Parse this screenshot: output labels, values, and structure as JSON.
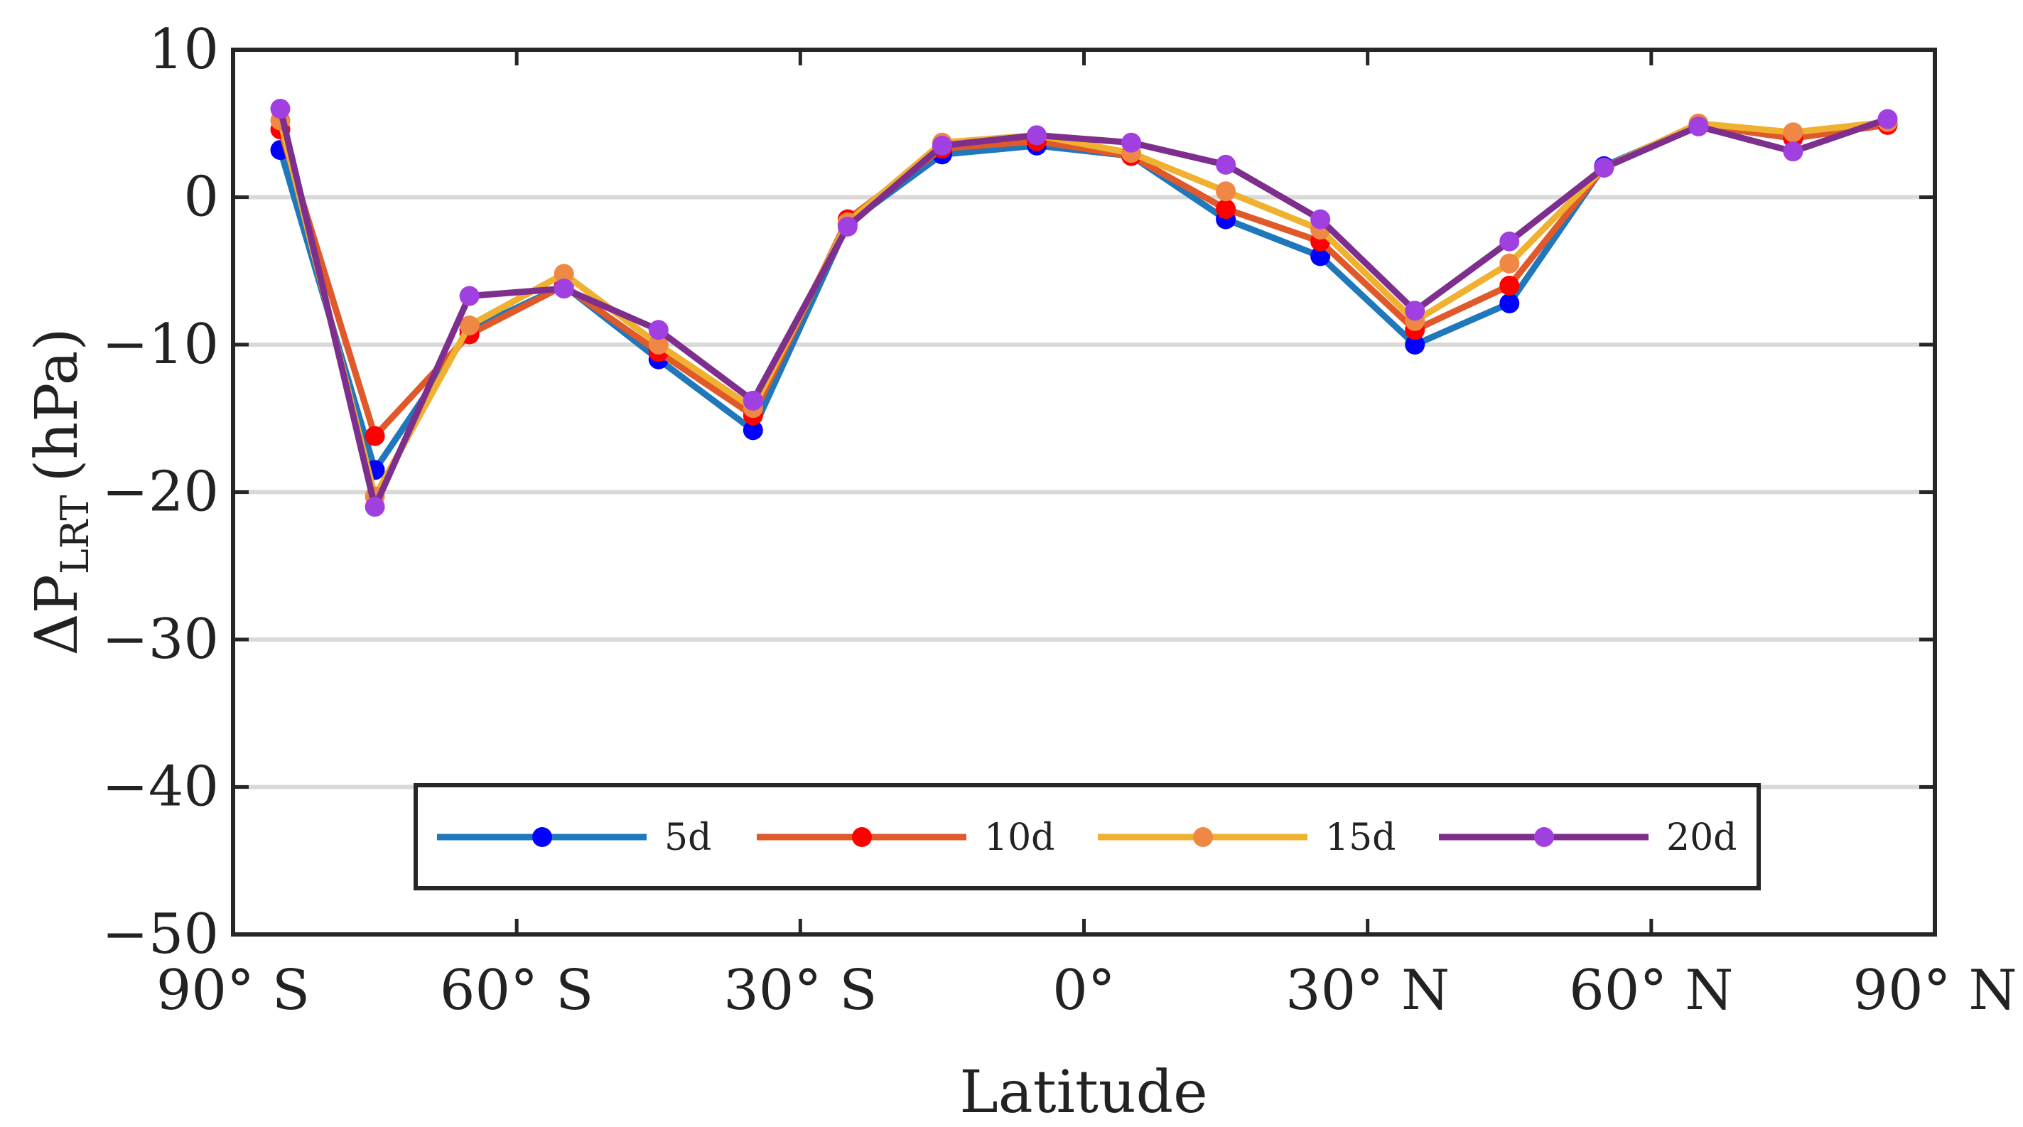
{
  "chart_data": {
    "type": "line",
    "title": "",
    "xlabel": "Latitude",
    "ylabel": "ΔP",
    "ylabel_subscript": "LRT",
    "ylabel_unit": "(hPa)",
    "xlim": [
      -90,
      90
    ],
    "ylim": [
      -50,
      10
    ],
    "x_ticks": [
      {
        "value": -90,
        "label": "90° S"
      },
      {
        "value": -60,
        "label": "60° S"
      },
      {
        "value": -30,
        "label": "30° S"
      },
      {
        "value": 0,
        "label": "0°"
      },
      {
        "value": 30,
        "label": "30° N"
      },
      {
        "value": 60,
        "label": "60° N"
      },
      {
        "value": 90,
        "label": "90° N"
      }
    ],
    "y_ticks": [
      {
        "value": 10,
        "label": "10"
      },
      {
        "value": 0,
        "label": "0"
      },
      {
        "value": -10,
        "label": "−10"
      },
      {
        "value": -20,
        "label": "−20"
      },
      {
        "value": -30,
        "label": "−30"
      },
      {
        "value": -40,
        "label": "−40"
      },
      {
        "value": -50,
        "label": "−50"
      }
    ],
    "grid": "horizontal",
    "legend_position": "bottom-center",
    "x": [
      -85,
      -75,
      -65,
      -55,
      -45,
      -35,
      -25,
      -15,
      -5,
      5,
      15,
      25,
      35,
      45,
      55,
      65,
      75,
      85
    ],
    "series": [
      {
        "name": "5d",
        "line_color": "#1f77bc",
        "marker_color": "#0000ff",
        "values": [
          3.2,
          -18.5,
          -9.0,
          -6.0,
          -11.0,
          -15.8,
          -1.8,
          2.9,
          3.5,
          2.8,
          -1.5,
          -4.0,
          -10.0,
          -7.2,
          2.1,
          4.9,
          4.0,
          5.0
        ]
      },
      {
        "name": "10d",
        "line_color": "#e0592a",
        "marker_color": "#ff0000",
        "values": [
          4.6,
          -16.2,
          -9.3,
          -6.0,
          -10.5,
          -14.8,
          -1.5,
          3.3,
          3.8,
          2.8,
          -0.8,
          -3.0,
          -9.0,
          -6.0,
          2.0,
          4.9,
          4.0,
          4.9
        ]
      },
      {
        "name": "15d",
        "line_color": "#f0b030",
        "marker_color": "#ee8844",
        "values": [
          5.2,
          -20.3,
          -8.7,
          -5.2,
          -10.0,
          -14.3,
          -1.7,
          3.7,
          4.2,
          3.0,
          0.4,
          -2.2,
          -8.4,
          -4.5,
          2.0,
          5.0,
          4.4,
          5.1
        ]
      },
      {
        "name": "20d",
        "line_color": "#7e2f8e",
        "marker_color": "#a040e0",
        "values": [
          6.0,
          -21.0,
          -6.7,
          -6.2,
          -9.0,
          -13.8,
          -2.0,
          3.5,
          4.2,
          3.7,
          2.2,
          -1.5,
          -7.7,
          -3.0,
          2.0,
          4.8,
          3.1,
          5.3
        ]
      }
    ]
  }
}
